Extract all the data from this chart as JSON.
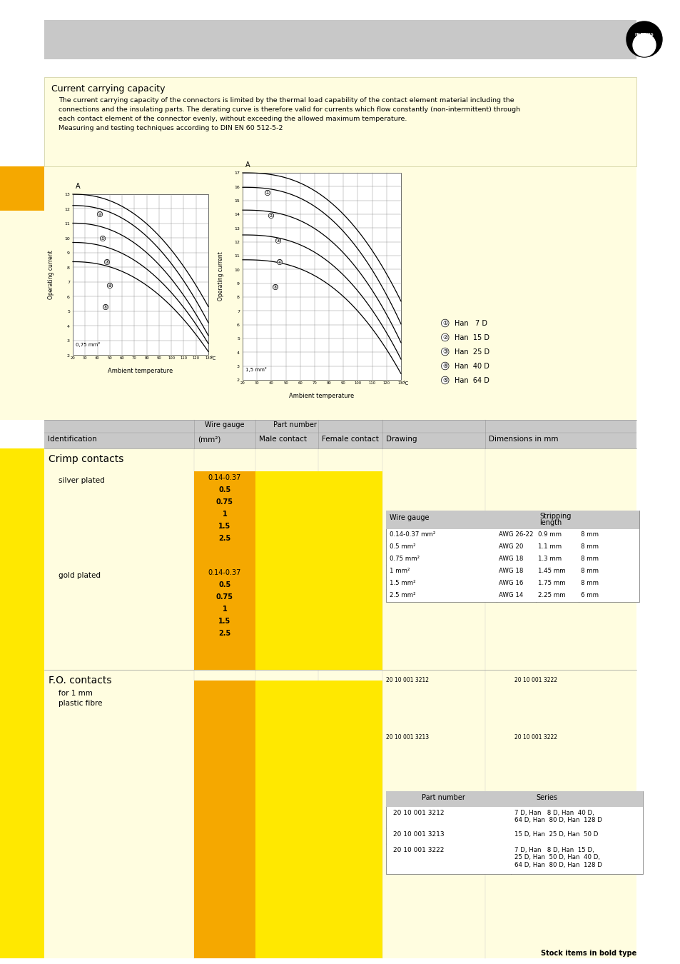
{
  "bg_yellow": "#FFFDE0",
  "orange": "#F5A800",
  "yellow_btn": "#FFE800",
  "gray_hdr": "#C8C8C8",
  "title": "Current carrying capacity",
  "body_lines": [
    "The current carrying capacity of the connectors is limited by the thermal load capability of the contact element material including the",
    "connections and the insulating parts. The derating curve is therefore valid for currents which flow constantly (non-intermittent) through",
    "each contact element of the connector evenly, without exceeding the allowed maximum temperature.",
    "Measuring and testing techniques according to DIN EN 60 512-5-2"
  ],
  "legend": [
    [
      "①",
      "Han   7 D"
    ],
    [
      "②",
      "Han  15 D"
    ],
    [
      "③",
      "Han  25 D"
    ],
    [
      "④",
      "Han  40 D"
    ],
    [
      "⑤",
      "Han  64 D"
    ]
  ],
  "silver_gauges": [
    "0.14-0.37",
    "0.5",
    "0.75",
    "1",
    "1.5",
    "2.5"
  ],
  "gold_gauges": [
    "0.14-0.37",
    "0.5",
    "0.75",
    "1",
    "1.5",
    "2.5"
  ],
  "wire_table_rows": [
    [
      "0.14-0.37 mm²",
      "AWG 26-22",
      "0.9 mm",
      "8 mm"
    ],
    [
      "0.5 mm²",
      "AWG 20",
      "1.1 mm",
      "8 mm"
    ],
    [
      "0.75 mm²",
      "AWG 18",
      "1.3 mm",
      "8 mm"
    ],
    [
      "1 mm²",
      "AWG 18",
      "1.45 mm",
      "8 mm"
    ],
    [
      "1.5 mm²",
      "AWG 16",
      "1.75 mm",
      "8 mm"
    ],
    [
      "2.5 mm²",
      "AWG 14",
      "2.25 mm",
      "6 mm"
    ]
  ],
  "fo_pn_table": [
    [
      "20 10 001 3212",
      "7 D, Han   8 D, Han  40 D,\n64 D, Han  80 D, Han  128 D"
    ],
    [
      "20 10 001 3213",
      "15 D, Han  25 D, Han  50 D"
    ],
    [
      "20 10 001 3222",
      "7 D, Han   8 D, Han  15 D,\n25 D, Han  50 D, Han  40 D,\n64 D, Han  80 D, Han  128 D"
    ]
  ],
  "footer": "Stock items in bold type"
}
